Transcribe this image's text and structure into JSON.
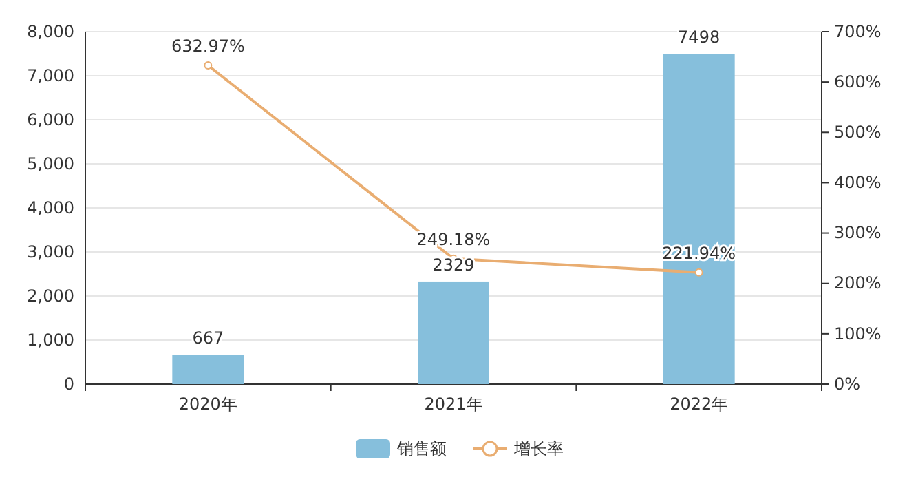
{
  "chart_data": {
    "type": "bar",
    "categories": [
      "2020年",
      "2021年",
      "2022年"
    ],
    "series": [
      {
        "name": "销售额",
        "color": "#86bfdc",
        "values": [
          667,
          2329,
          7498
        ],
        "value_labels": [
          "667",
          "2329",
          "7498"
        ]
      },
      {
        "name": "增长率",
        "type": "line",
        "axis": "y2",
        "color": "#e9ad71",
        "values": [
          632.97,
          249.18,
          221.94
        ],
        "value_labels": [
          "632.97%",
          "249.18%",
          "221.94%"
        ],
        "marker": "circle"
      }
    ],
    "ylim": [
      0,
      8000
    ],
    "yticks": [
      0,
      {
        "value": 1000,
        "label": "1,000"
      },
      {
        "value": 2000,
        "label": "2,000"
      },
      {
        "value": 3000,
        "label": "3,000"
      },
      {
        "value": 4000,
        "label": "4,000"
      },
      {
        "value": 5000,
        "label": "5,000"
      },
      {
        "value": 6000,
        "label": "6,000"
      },
      {
        "value": 7000,
        "label": "7,000"
      },
      {
        "value": 8000,
        "label": "8,000"
      }
    ],
    "y2lim": [
      0,
      700
    ],
    "y2ticks": [
      {
        "value": 0,
        "label": "0%"
      },
      {
        "value": 100,
        "label": "100%"
      },
      {
        "value": 200,
        "label": "200%"
      },
      {
        "value": 300,
        "label": "300%"
      },
      {
        "value": 400,
        "label": "400%"
      },
      {
        "value": 500,
        "label": "500%"
      },
      {
        "value": 600,
        "label": "600%"
      },
      {
        "value": 700,
        "label": "700%"
      }
    ],
    "grid": "y",
    "legend": "bottom"
  }
}
